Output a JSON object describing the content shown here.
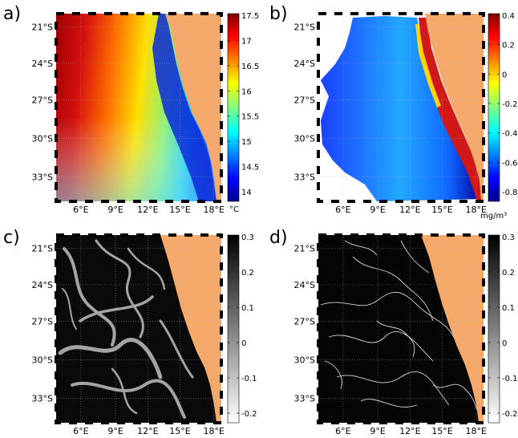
{
  "figure": {
    "panels": [
      {
        "label": "a)",
        "lat_labels": [
          "21°S",
          "24°S",
          "27°S",
          "30°S",
          "33°S"
        ],
        "lon_labels": [
          "6°E",
          "9°E",
          "12°E",
          "15°E",
          "18°E"
        ],
        "colorbar": {
          "ticks": [
            "17.5",
            "17",
            "16.5",
            "16",
            "15.5",
            "15",
            "14.5",
            "14"
          ],
          "unit": "°C",
          "colormap": "jet"
        }
      },
      {
        "label": "b)",
        "lat_labels": [
          "21°S",
          "24°S",
          "27°S",
          "30°S",
          "33°S"
        ],
        "lon_labels": [
          "6°E",
          "9°E",
          "12°E",
          "15°E",
          "18°E"
        ],
        "colorbar": {
          "ticks": [
            "0.4",
            "0.2",
            "0",
            "-0.2",
            "-0.4",
            "-0.6",
            "-0.8"
          ],
          "unit": "mg/m³",
          "colormap": "jet"
        }
      },
      {
        "label": "c)",
        "lat_labels": [
          "21°S",
          "24°S",
          "27°S",
          "30°S",
          "33°S"
        ],
        "lon_labels": [
          "6°E",
          "9°E",
          "12°E",
          "15°E",
          "18°E"
        ],
        "colorbar": {
          "ticks": [
            "0.3",
            "0.2",
            "0.1",
            "0",
            "-0.1",
            "-0.2"
          ],
          "unit": "",
          "colormap": "gray"
        }
      },
      {
        "label": "d)",
        "lat_labels": [
          "21°S",
          "24°S",
          "27°S",
          "30°S",
          "33°S"
        ],
        "lon_labels": [
          "6°E",
          "9°E",
          "12°E",
          "15°E",
          "18°E"
        ],
        "colorbar": {
          "ticks": [
            "0.3",
            "0.2",
            "0.1",
            "0",
            "-0.1",
            "-0.2"
          ],
          "unit": "",
          "colormap": "gray"
        }
      }
    ],
    "colors": {
      "land": "#f5a96b",
      "grid": "#bbbbbb",
      "frame": "#000000"
    }
  },
  "chart_data": [
    {
      "type": "heatmap",
      "title": "",
      "xlabel": "",
      "ylabel": "",
      "x_ticks": [
        "6°E",
        "9°E",
        "12°E",
        "15°E",
        "18°E"
      ],
      "y_ticks": [
        "21°S",
        "24°S",
        "27°S",
        "30°S",
        "33°S"
      ],
      "colorbar_range": [
        14,
        17.5
      ],
      "colorbar_unit": "°C",
      "colormap": "jet",
      "grid": true
    },
    {
      "type": "heatmap",
      "title": "",
      "xlabel": "",
      "ylabel": "",
      "x_ticks": [
        "6°E",
        "9°E",
        "12°E",
        "15°E",
        "18°E"
      ],
      "y_ticks": [
        "21°S",
        "24°S",
        "27°S",
        "30°S",
        "33°S"
      ],
      "colorbar_range": [
        -0.9,
        0.5
      ],
      "colorbar_unit": "mg/m³",
      "colormap": "jet",
      "grid": true
    },
    {
      "type": "heatmap",
      "title": "",
      "xlabel": "",
      "ylabel": "",
      "x_ticks": [
        "6°E",
        "9°E",
        "12°E",
        "15°E",
        "18°E"
      ],
      "y_ticks": [
        "21°S",
        "24°S",
        "27°S",
        "30°S",
        "33°S"
      ],
      "colorbar_range": [
        -0.3,
        0.3
      ],
      "colormap": "gray",
      "grid": true
    },
    {
      "type": "heatmap",
      "title": "",
      "xlabel": "",
      "ylabel": "",
      "x_ticks": [
        "6°E",
        "9°E",
        "12°E",
        "15°E",
        "18°E"
      ],
      "y_ticks": [
        "21°S",
        "24°S",
        "27°S",
        "30°S",
        "33°S"
      ],
      "colorbar_range": [
        -0.3,
        0.3
      ],
      "colormap": "gray",
      "grid": true
    }
  ]
}
